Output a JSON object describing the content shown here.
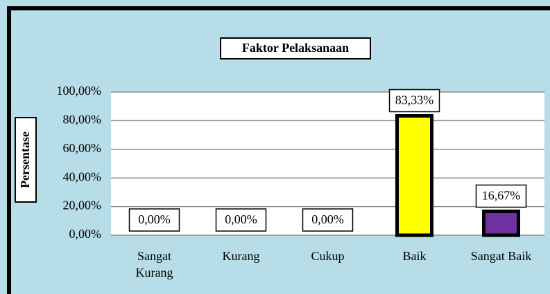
{
  "chart_data": {
    "type": "bar",
    "title": "Faktor Pelaksanaan",
    "ylabel": "Persentase",
    "categories": [
      "Sangat Kurang",
      "Kurang",
      "Cukup",
      "Baik",
      "Sangat Baik"
    ],
    "values": [
      0,
      0,
      0,
      83.33,
      16.67
    ],
    "value_labels": [
      "0,00%",
      "0,00%",
      "0,00%",
      "83,33%",
      "16,67%"
    ],
    "colors": [
      null,
      null,
      null,
      "#ffff00",
      "#7030a0"
    ],
    "ylim": [
      0,
      100
    ],
    "yticks": [
      {
        "value": 0,
        "label": "0,00%"
      },
      {
        "value": 20,
        "label": "20,00%"
      },
      {
        "value": 40,
        "label": "40,00%"
      },
      {
        "value": 60,
        "label": "60,00%"
      },
      {
        "value": 80,
        "label": "80,00%"
      },
      {
        "value": 100,
        "label": "100,00%"
      }
    ],
    "grid": true
  }
}
